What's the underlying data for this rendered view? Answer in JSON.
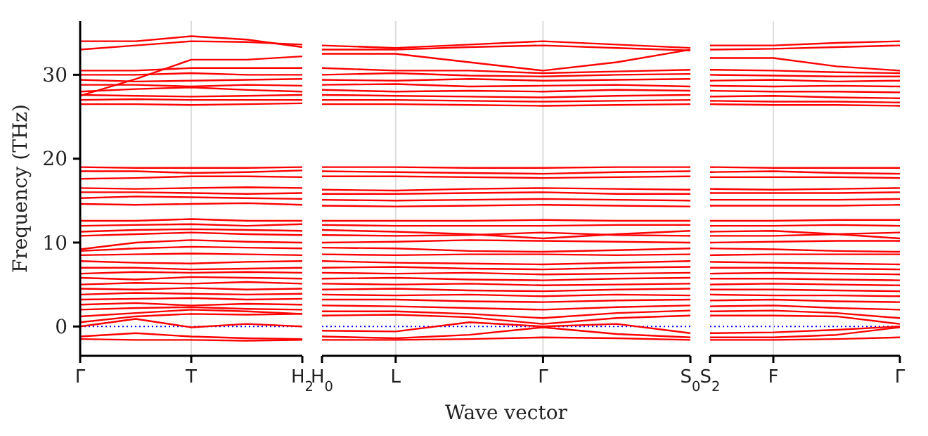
{
  "chart_data": [
    {
      "type": "line",
      "ylabel": "Frequency (THz)",
      "categories": [
        "Γ",
        null,
        "T",
        null,
        "H$_{2}$"
      ],
      "ylim": [
        -3.5,
        36.4
      ],
      "yticks": [
        0,
        10,
        20,
        30
      ],
      "ref_lines": [
        {
          "axis": "y",
          "value": 0,
          "color": "#0000ff",
          "line_style": "dotted"
        },
        {
          "axis": "x",
          "value": "T",
          "color": "#dddddd"
        }
      ],
      "series": [
        {
          "color": "#ff0000",
          "values": [
            33.0,
            33.5,
            34.0,
            33.9,
            33.6
          ]
        },
        {
          "color": "#ff0000",
          "values": [
            34.0,
            34.0,
            34.6,
            34.2,
            33.3
          ]
        },
        {
          "color": "#ff0000",
          "values": [
            27.5,
            29.5,
            31.8,
            31.8,
            32.2
          ]
        },
        {
          "color": "#ff0000",
          "values": [
            30.5,
            30.5,
            30.8,
            30.8,
            30.8
          ]
        },
        {
          "color": "#ff0000",
          "values": [
            30.0,
            30.0,
            30.2,
            30.0,
            30.0
          ]
        },
        {
          "color": "#ff0000",
          "values": [
            29.4,
            29.2,
            29.3,
            29.4,
            29.5
          ]
        },
        {
          "color": "#ff0000",
          "values": [
            28.8,
            28.8,
            28.6,
            28.8,
            28.7
          ]
        },
        {
          "color": "#ff0000",
          "values": [
            28.0,
            28.3,
            28.5,
            28.2,
            28.0
          ]
        },
        {
          "color": "#ff0000",
          "values": [
            27.6,
            27.5,
            27.4,
            27.5,
            27.6
          ]
        },
        {
          "color": "#ff0000",
          "values": [
            27.0,
            27.1,
            27.0,
            27.0,
            27.0
          ]
        },
        {
          "color": "#ff0000",
          "values": [
            26.5,
            26.5,
            26.4,
            26.5,
            26.6
          ]
        },
        {
          "color": "#ff0000",
          "values": [
            19.0,
            18.9,
            18.9,
            18.9,
            19.0
          ]
        },
        {
          "color": "#ff0000",
          "values": [
            18.5,
            18.5,
            18.3,
            18.4,
            18.6
          ]
        },
        {
          "color": "#ff0000",
          "values": [
            17.6,
            17.7,
            17.9,
            17.9,
            17.8
          ]
        },
        {
          "color": "#ff0000",
          "values": [
            16.5,
            16.4,
            16.5,
            16.6,
            16.5
          ]
        },
        {
          "color": "#ff0000",
          "values": [
            16.0,
            16.0,
            15.9,
            15.8,
            15.9
          ]
        },
        {
          "color": "#ff0000",
          "values": [
            15.3,
            15.5,
            15.4,
            15.3,
            15.2
          ]
        },
        {
          "color": "#ff0000",
          "values": [
            14.6,
            14.5,
            14.6,
            14.7,
            14.5
          ]
        },
        {
          "color": "#ff0000",
          "values": [
            12.6,
            12.6,
            12.8,
            12.6,
            12.6
          ]
        },
        {
          "color": "#ff0000",
          "values": [
            12.0,
            12.1,
            12.2,
            12.0,
            12.2
          ]
        },
        {
          "color": "#ff0000",
          "values": [
            11.3,
            11.5,
            11.6,
            11.5,
            11.4
          ]
        },
        {
          "color": "#ff0000",
          "values": [
            10.8,
            11.0,
            11.2,
            11.0,
            10.9
          ]
        },
        {
          "color": "#ff0000",
          "values": [
            9.2,
            10.0,
            10.3,
            10.1,
            10.0
          ]
        },
        {
          "color": "#ff0000",
          "values": [
            9.0,
            9.3,
            9.5,
            9.4,
            9.3
          ]
        },
        {
          "color": "#ff0000",
          "values": [
            8.5,
            8.6,
            8.7,
            8.6,
            8.5
          ]
        },
        {
          "color": "#ff0000",
          "values": [
            7.8,
            7.6,
            7.5,
            7.7,
            7.8
          ]
        },
        {
          "color": "#ff0000",
          "values": [
            7.0,
            7.0,
            6.8,
            6.9,
            7.0
          ]
        },
        {
          "color": "#ff0000",
          "values": [
            6.3,
            6.5,
            6.4,
            6.5,
            6.4
          ]
        },
        {
          "color": "#ff0000",
          "values": [
            5.8,
            5.6,
            5.9,
            5.8,
            5.7
          ]
        },
        {
          "color": "#ff0000",
          "values": [
            5.0,
            5.2,
            5.1,
            5.3,
            5.1
          ]
        },
        {
          "color": "#ff0000",
          "values": [
            4.5,
            4.4,
            4.6,
            4.4,
            4.5
          ]
        },
        {
          "color": "#ff0000",
          "values": [
            3.8,
            4.0,
            3.9,
            3.8,
            3.9
          ]
        },
        {
          "color": "#ff0000",
          "values": [
            3.2,
            3.3,
            3.4,
            3.2,
            3.3
          ]
        },
        {
          "color": "#ff0000",
          "values": [
            2.6,
            2.8,
            2.5,
            2.7,
            2.6
          ]
        },
        {
          "color": "#ff0000",
          "values": [
            2.0,
            2.2,
            2.3,
            2.1,
            2.0
          ]
        },
        {
          "color": "#ff0000",
          "values": [
            1.2,
            1.6,
            2.0,
            1.8,
            1.5
          ]
        },
        {
          "color": "#ff0000",
          "values": [
            0.5,
            1.2,
            1.5,
            1.4,
            1.5
          ]
        },
        {
          "color": "#ff0000",
          "values": [
            0,
            0.9,
            -0.1,
            0.3,
            0
          ]
        },
        {
          "color": "#ff0000",
          "values": [
            -1.2,
            -0.8,
            -1.2,
            -1.4,
            -1.5
          ]
        },
        {
          "color": "#ff0000",
          "values": [
            -1.5,
            -1.6,
            -1.6,
            -1.7,
            -1.6
          ]
        }
      ]
    },
    {
      "type": "line",
      "xlabel": "Wave vector",
      "categories": [
        "H$_{0}$",
        "L",
        null,
        "Γ",
        null,
        "S$_{0}$"
      ],
      "ylim": [
        -3.5,
        36.4
      ],
      "yticks": [
        0,
        10,
        20,
        30
      ],
      "tick_labels": "x",
      "ref_lines": [
        {
          "axis": "y",
          "value": 0,
          "color": "#0000ff",
          "line_style": "dotted"
        },
        {
          "axis": "x",
          "value": "L",
          "color": "#dddddd"
        },
        {
          "axis": "x",
          "value": "Γ",
          "color": "#dddddd"
        }
      ],
      "series": [
        {
          "color": "#ff0000",
          "values": [
            33.5,
            33.2,
            33.6,
            34.0,
            33.6,
            33.2
          ]
        },
        {
          "color": "#ff0000",
          "values": [
            33.0,
            33.0,
            33.3,
            33.5,
            33.2,
            32.9
          ]
        },
        {
          "color": "#ff0000",
          "values": [
            32.5,
            32.5,
            31.5,
            30.5,
            31.5,
            33.0
          ]
        },
        {
          "color": "#ff0000",
          "values": [
            30.8,
            30.5,
            30.5,
            30.2,
            30.4,
            30.6
          ]
        },
        {
          "color": "#ff0000",
          "values": [
            30.0,
            30.2,
            29.9,
            29.8,
            30.0,
            30.1
          ]
        },
        {
          "color": "#ff0000",
          "values": [
            29.4,
            29.3,
            29.5,
            29.3,
            29.4,
            29.5
          ]
        },
        {
          "color": "#ff0000",
          "values": [
            28.8,
            28.9,
            28.6,
            28.7,
            28.8,
            28.6
          ]
        },
        {
          "color": "#ff0000",
          "values": [
            28.2,
            28.0,
            28.1,
            28.0,
            28.2,
            28.1
          ]
        },
        {
          "color": "#ff0000",
          "values": [
            27.6,
            27.5,
            27.4,
            27.3,
            27.5,
            27.6
          ]
        },
        {
          "color": "#ff0000",
          "values": [
            27.0,
            27.0,
            26.9,
            26.8,
            26.9,
            27.0
          ]
        },
        {
          "color": "#ff0000",
          "values": [
            26.5,
            26.5,
            26.4,
            26.3,
            26.4,
            26.5
          ]
        },
        {
          "color": "#ff0000",
          "values": [
            19.0,
            19.0,
            18.9,
            18.9,
            19.0,
            19.0
          ]
        },
        {
          "color": "#ff0000",
          "values": [
            18.5,
            18.4,
            18.3,
            18.2,
            18.4,
            18.5
          ]
        },
        {
          "color": "#ff0000",
          "values": [
            17.9,
            17.9,
            17.8,
            17.7,
            17.8,
            17.9
          ]
        },
        {
          "color": "#ff0000",
          "values": [
            16.3,
            16.2,
            16.4,
            16.5,
            16.4,
            16.3
          ]
        },
        {
          "color": "#ff0000",
          "values": [
            15.8,
            15.8,
            15.9,
            16.0,
            15.8,
            15.8
          ]
        },
        {
          "color": "#ff0000",
          "values": [
            15.1,
            15.0,
            15.1,
            15.2,
            15.1,
            15.0
          ]
        },
        {
          "color": "#ff0000",
          "values": [
            14.4,
            14.3,
            14.4,
            14.5,
            14.4,
            14.3
          ]
        },
        {
          "color": "#ff0000",
          "values": [
            12.6,
            12.6,
            12.6,
            12.7,
            12.6,
            12.6
          ]
        },
        {
          "color": "#ff0000",
          "values": [
            12.1,
            12.0,
            12.0,
            12.0,
            12.1,
            12.1
          ]
        },
        {
          "color": "#ff0000",
          "values": [
            11.5,
            11.3,
            11.0,
            10.5,
            11.0,
            11.4
          ]
        },
        {
          "color": "#ff0000",
          "values": [
            10.9,
            10.8,
            10.9,
            11.2,
            10.9,
            10.8
          ]
        },
        {
          "color": "#ff0000",
          "values": [
            10.0,
            10.1,
            10.3,
            10.2,
            10.1,
            10.0
          ]
        },
        {
          "color": "#ff0000",
          "values": [
            9.4,
            9.3,
            9.0,
            8.9,
            9.1,
            9.3
          ]
        },
        {
          "color": "#ff0000",
          "values": [
            8.6,
            8.5,
            8.6,
            8.6,
            8.5,
            8.6
          ]
        },
        {
          "color": "#ff0000",
          "values": [
            7.8,
            7.6,
            7.5,
            7.4,
            7.6,
            7.8
          ]
        },
        {
          "color": "#ff0000",
          "values": [
            7.0,
            7.1,
            6.9,
            6.8,
            7.0,
            7.1
          ]
        },
        {
          "color": "#ff0000",
          "values": [
            6.4,
            6.3,
            6.4,
            6.2,
            6.3,
            6.4
          ]
        },
        {
          "color": "#ff0000",
          "values": [
            5.7,
            5.8,
            5.6,
            5.5,
            5.7,
            5.8
          ]
        },
        {
          "color": "#ff0000",
          "values": [
            5.1,
            5.0,
            5.1,
            4.9,
            5.0,
            5.1
          ]
        },
        {
          "color": "#ff0000",
          "values": [
            4.4,
            4.5,
            4.3,
            4.2,
            4.4,
            4.5
          ]
        },
        {
          "color": "#ff0000",
          "values": [
            3.8,
            3.7,
            3.8,
            3.6,
            3.8,
            3.7
          ]
        },
        {
          "color": "#ff0000",
          "values": [
            3.2,
            3.2,
            3.0,
            2.9,
            3.1,
            3.2
          ]
        },
        {
          "color": "#ff0000",
          "values": [
            2.5,
            2.4,
            2.2,
            2.0,
            2.3,
            2.5
          ]
        },
        {
          "color": "#ff0000",
          "values": [
            1.8,
            1.8,
            1.5,
            1.0,
            1.6,
            1.9
          ]
        },
        {
          "color": "#ff0000",
          "values": [
            1.3,
            1.4,
            1.1,
            0.3,
            1.0,
            1.3
          ]
        },
        {
          "color": "#ff0000",
          "values": [
            -0.5,
            -0.6,
            0.5,
            0,
            0.3,
            -0.8
          ]
        },
        {
          "color": "#ff0000",
          "values": [
            -1.2,
            -1.4,
            -1.0,
            -0.1,
            -0.9,
            -1.3
          ]
        },
        {
          "color": "#ff0000",
          "values": [
            -1.6,
            -1.6,
            -1.5,
            -1.3,
            -1.4,
            -1.6
          ]
        }
      ]
    },
    {
      "type": "line",
      "categories": [
        "S$_{2}$",
        "F",
        null,
        "Γ"
      ],
      "ylim": [
        -3.5,
        36.4
      ],
      "yticks": [
        0,
        10,
        20,
        30
      ],
      "tick_labels": "x",
      "ref_lines": [
        {
          "axis": "y",
          "value": 0,
          "color": "#0000ff",
          "line_style": "dotted"
        },
        {
          "axis": "x",
          "value": "F",
          "color": "#dddddd"
        }
      ],
      "series": [
        {
          "color": "#ff0000",
          "values": [
            33.5,
            33.5,
            33.8,
            34.0
          ]
        },
        {
          "color": "#ff0000",
          "values": [
            33.0,
            33.1,
            33.3,
            33.5
          ]
        },
        {
          "color": "#ff0000",
          "values": [
            32.0,
            32.0,
            31.0,
            30.5
          ]
        },
        {
          "color": "#ff0000",
          "values": [
            30.6,
            30.5,
            30.3,
            30.2
          ]
        },
        {
          "color": "#ff0000",
          "values": [
            30.0,
            29.9,
            29.8,
            29.8
          ]
        },
        {
          "color": "#ff0000",
          "values": [
            29.3,
            29.4,
            29.2,
            29.3
          ]
        },
        {
          "color": "#ff0000",
          "values": [
            28.7,
            28.6,
            28.7,
            28.6
          ]
        },
        {
          "color": "#ff0000",
          "values": [
            28.1,
            28.0,
            28.0,
            27.9
          ]
        },
        {
          "color": "#ff0000",
          "values": [
            27.4,
            27.5,
            27.3,
            27.2
          ]
        },
        {
          "color": "#ff0000",
          "values": [
            26.9,
            26.8,
            26.8,
            26.7
          ]
        },
        {
          "color": "#ff0000",
          "values": [
            26.5,
            26.4,
            26.4,
            26.3
          ]
        },
        {
          "color": "#ff0000",
          "values": [
            19.0,
            18.9,
            18.9,
            18.9
          ]
        },
        {
          "color": "#ff0000",
          "values": [
            18.4,
            18.5,
            18.3,
            18.2
          ]
        },
        {
          "color": "#ff0000",
          "values": [
            17.8,
            17.8,
            17.8,
            17.7
          ]
        },
        {
          "color": "#ff0000",
          "values": [
            16.4,
            16.3,
            16.4,
            16.5
          ]
        },
        {
          "color": "#ff0000",
          "values": [
            15.9,
            15.9,
            15.9,
            16.0
          ]
        },
        {
          "color": "#ff0000",
          "values": [
            15.1,
            15.1,
            15.1,
            15.2
          ]
        },
        {
          "color": "#ff0000",
          "values": [
            14.4,
            14.4,
            14.4,
            14.5
          ]
        },
        {
          "color": "#ff0000",
          "values": [
            12.6,
            12.6,
            12.7,
            12.7
          ]
        },
        {
          "color": "#ff0000",
          "values": [
            12.0,
            12.0,
            12.1,
            12.0
          ]
        },
        {
          "color": "#ff0000",
          "values": [
            11.3,
            11.4,
            11.0,
            10.5
          ]
        },
        {
          "color": "#ff0000",
          "values": [
            10.8,
            10.8,
            11.0,
            11.2
          ]
        },
        {
          "color": "#ff0000",
          "values": [
            10.0,
            10.1,
            10.2,
            10.2
          ]
        },
        {
          "color": "#ff0000",
          "values": [
            9.3,
            9.2,
            9.0,
            8.9
          ]
        },
        {
          "color": "#ff0000",
          "values": [
            8.5,
            8.6,
            8.6,
            8.6
          ]
        },
        {
          "color": "#ff0000",
          "values": [
            7.7,
            7.6,
            7.5,
            7.4
          ]
        },
        {
          "color": "#ff0000",
          "values": [
            7.0,
            7.0,
            6.9,
            6.8
          ]
        },
        {
          "color": "#ff0000",
          "values": [
            6.3,
            6.4,
            6.3,
            6.2
          ]
        },
        {
          "color": "#ff0000",
          "values": [
            5.7,
            5.7,
            5.6,
            5.5
          ]
        },
        {
          "color": "#ff0000",
          "values": [
            5.0,
            5.1,
            5.0,
            4.9
          ]
        },
        {
          "color": "#ff0000",
          "values": [
            4.4,
            4.4,
            4.3,
            4.2
          ]
        },
        {
          "color": "#ff0000",
          "values": [
            3.8,
            3.7,
            3.7,
            3.6
          ]
        },
        {
          "color": "#ff0000",
          "values": [
            3.1,
            3.2,
            3.0,
            2.9
          ]
        },
        {
          "color": "#ff0000",
          "values": [
            2.4,
            2.5,
            2.2,
            2.0
          ]
        },
        {
          "color": "#ff0000",
          "values": [
            1.8,
            1.9,
            1.6,
            1.0
          ]
        },
        {
          "color": "#ff0000",
          "values": [
            1.3,
            1.3,
            1.2,
            0.3
          ]
        },
        {
          "color": "#ff0000",
          "values": [
            -0.8,
            -0.7,
            -0.4,
            0
          ]
        },
        {
          "color": "#ff0000",
          "values": [
            -1.3,
            -1.3,
            -1.0,
            -0.1
          ]
        },
        {
          "color": "#ff0000",
          "values": [
            -1.6,
            -1.6,
            -1.5,
            -1.3
          ]
        }
      ]
    }
  ]
}
